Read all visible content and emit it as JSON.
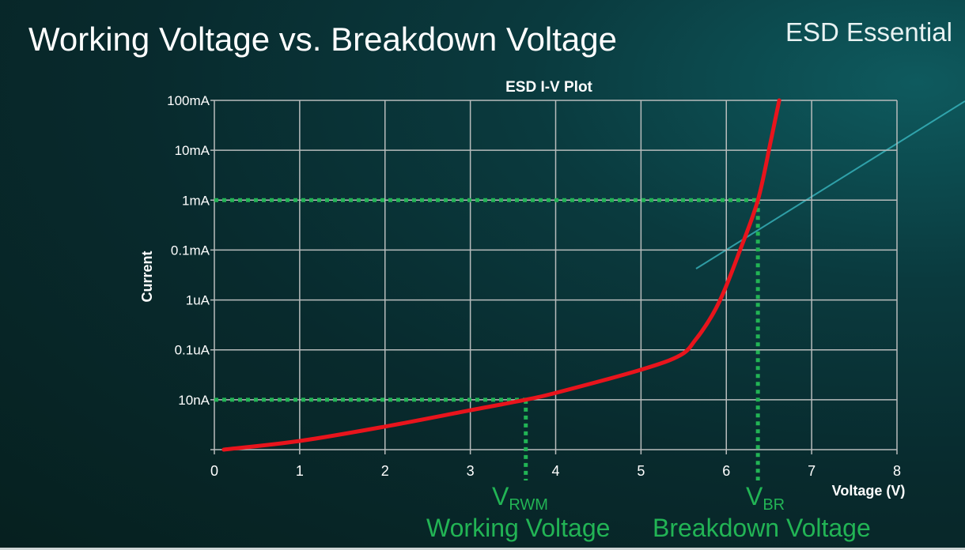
{
  "slide": {
    "title": "Working Voltage vs. Breakdown Voltage",
    "brand": "ESD Essential"
  },
  "chart_data": {
    "type": "line",
    "title": "ESD I-V Plot",
    "xlabel": "Voltage (V)",
    "ylabel": "Current",
    "xlim": [
      0,
      8
    ],
    "x_ticks": [
      "0",
      "1",
      "2",
      "3",
      "4",
      "5",
      "6",
      "7",
      "8"
    ],
    "y_ticks": [
      {
        "label": "",
        "value": 1e-09
      },
      {
        "label": "10nA",
        "value": 1e-08
      },
      {
        "label": "0.1uA",
        "value": 1e-07
      },
      {
        "label": "1uA",
        "value": 1e-06
      },
      {
        "label": "0.1mA",
        "value": 0.0001
      },
      {
        "label": "1mA",
        "value": 0.001
      },
      {
        "label": "10mA",
        "value": 0.01
      },
      {
        "label": "100mA",
        "value": 0.1
      }
    ],
    "grid": true,
    "series": [
      {
        "color": "#e8141c",
        "x": [
          0.11,
          1.01,
          2.0,
          3.01,
          3.65,
          4.02,
          5.0,
          5.46,
          5.64,
          5.83,
          5.97,
          6.15,
          6.37,
          6.52,
          6.62
        ],
        "y": [
          1e-09,
          1.5e-09,
          2.9e-09,
          6.2e-09,
          1e-08,
          1.4e-08,
          4e-08,
          7.8e-08,
          1.6e-07,
          4.8e-07,
          2.1e-06,
          7.9e-05,
          0.001,
          0.015,
          0.1
        ]
      }
    ],
    "annotations": [
      {
        "name": "V",
        "sub": "RWM",
        "caption": "Working Voltage",
        "x": 3.65,
        "y": 1e-08,
        "color": "#22b455"
      },
      {
        "name": "V",
        "sub": "BR",
        "caption": "Breakdown Voltage",
        "x": 6.37,
        "y": 0.001,
        "color": "#22b455"
      }
    ]
  }
}
